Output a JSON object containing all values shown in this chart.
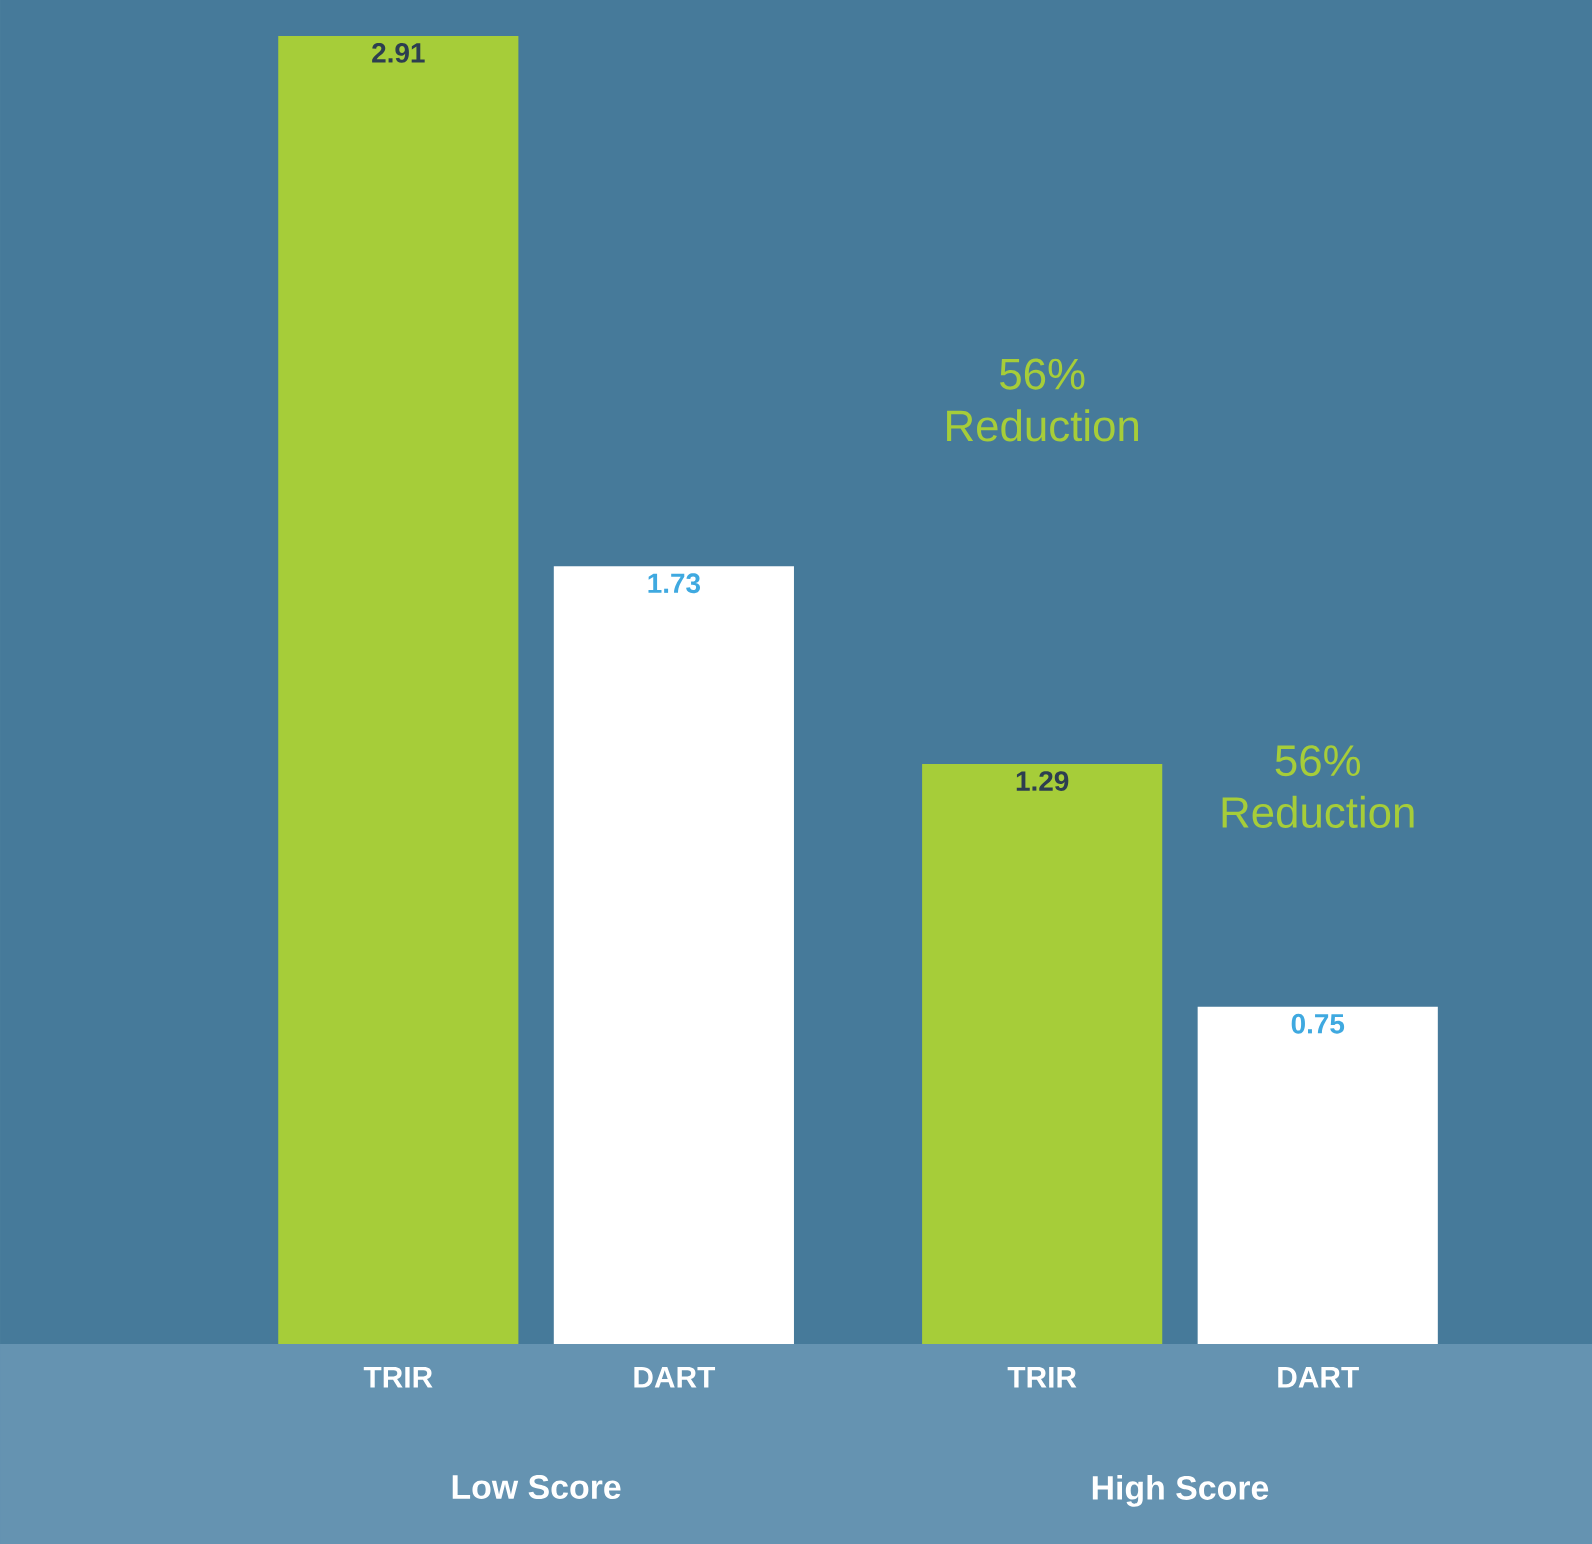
{
  "chart_data": {
    "type": "bar",
    "categories": [
      "Low Score",
      "High Score"
    ],
    "series": [
      {
        "name": "TRIR",
        "color": "#a6cd39",
        "values": [
          2.91,
          1.29
        ]
      },
      {
        "name": "DART",
        "color": "#ffffff",
        "values": [
          1.73,
          0.75
        ]
      }
    ],
    "data_labels": true,
    "legend": false,
    "annotations": [
      "56% Reduction",
      "56% Reduction"
    ]
  }
}
